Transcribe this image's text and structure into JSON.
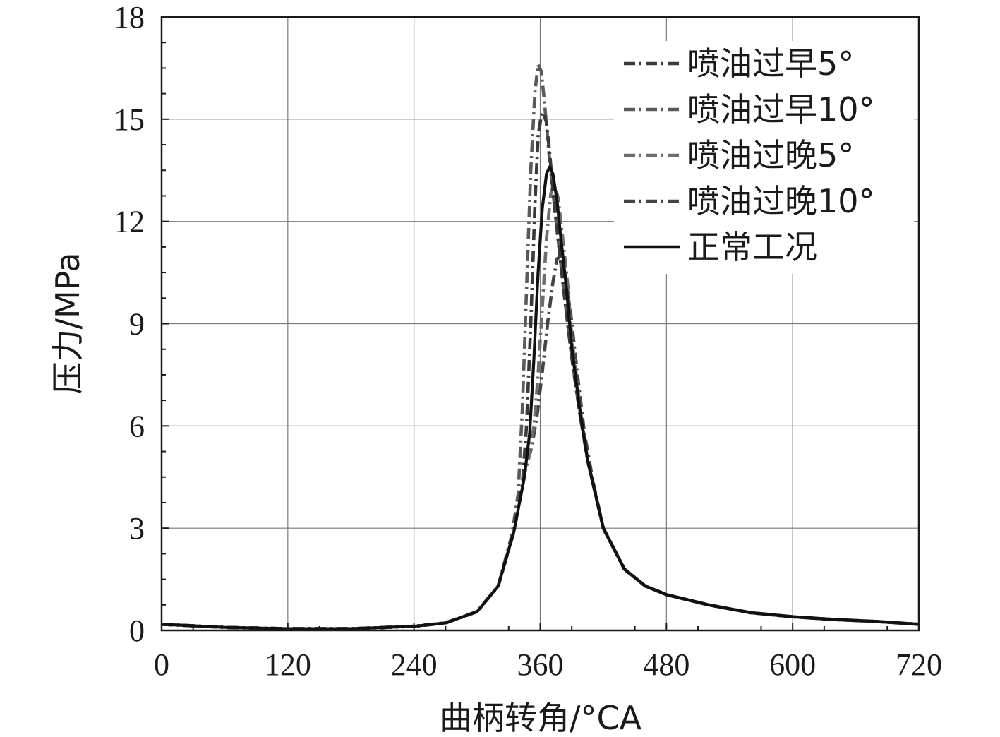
{
  "chart_data": {
    "type": "line",
    "xlabel": "曲柄转角/°CA",
    "ylabel": "压力/MPa",
    "xlim": [
      0,
      720
    ],
    "ylim": [
      0,
      18
    ],
    "xticks": [
      0,
      120,
      240,
      360,
      480,
      600,
      720
    ],
    "yticks": [
      0,
      3,
      6,
      9,
      12,
      15,
      18
    ],
    "grid": true,
    "legend_position": "top-right",
    "series": [
      {
        "name": "喷油过早5°",
        "color": "#3a3a3a",
        "dash": "dash-dot",
        "points": [
          [
            0,
            0.18
          ],
          [
            60,
            0.09
          ],
          [
            120,
            0.05
          ],
          [
            180,
            0.05
          ],
          [
            240,
            0.12
          ],
          [
            270,
            0.22
          ],
          [
            300,
            0.55
          ],
          [
            320,
            1.3
          ],
          [
            335,
            2.9
          ],
          [
            343,
            4.3
          ],
          [
            347,
            6.0
          ],
          [
            351,
            9.0
          ],
          [
            355,
            12.5
          ],
          [
            358,
            14.5
          ],
          [
            361,
            15.1
          ],
          [
            363,
            15.2
          ],
          [
            366,
            14.9
          ],
          [
            369,
            14.0
          ],
          [
            373,
            12.6
          ],
          [
            378,
            11.2
          ],
          [
            383,
            9.8
          ],
          [
            390,
            8.0
          ],
          [
            398,
            6.3
          ],
          [
            405,
            5.0
          ],
          [
            420,
            3.0
          ],
          [
            440,
            1.8
          ],
          [
            460,
            1.3
          ],
          [
            480,
            1.05
          ],
          [
            520,
            0.75
          ],
          [
            560,
            0.52
          ],
          [
            600,
            0.4
          ],
          [
            640,
            0.32
          ],
          [
            680,
            0.26
          ],
          [
            720,
            0.18
          ]
        ]
      },
      {
        "name": "喷油过早10°",
        "color": "#5a5a5a",
        "dash": "dash-dot",
        "points": [
          [
            0,
            0.18
          ],
          [
            60,
            0.09
          ],
          [
            120,
            0.05
          ],
          [
            180,
            0.05
          ],
          [
            240,
            0.12
          ],
          [
            270,
            0.22
          ],
          [
            300,
            0.55
          ],
          [
            320,
            1.3
          ],
          [
            333,
            2.8
          ],
          [
            339,
            4.0
          ],
          [
            343,
            6.5
          ],
          [
            347,
            10.0
          ],
          [
            351,
            13.5
          ],
          [
            355,
            15.8
          ],
          [
            358,
            16.6
          ],
          [
            361,
            16.4
          ],
          [
            364,
            15.5
          ],
          [
            368,
            14.1
          ],
          [
            373,
            12.6
          ],
          [
            378,
            11.2
          ],
          [
            383,
            9.8
          ],
          [
            390,
            8.0
          ],
          [
            398,
            6.3
          ],
          [
            405,
            5.0
          ],
          [
            420,
            3.0
          ],
          [
            440,
            1.8
          ],
          [
            460,
            1.3
          ],
          [
            480,
            1.05
          ],
          [
            520,
            0.75
          ],
          [
            560,
            0.52
          ],
          [
            600,
            0.4
          ],
          [
            640,
            0.32
          ],
          [
            680,
            0.26
          ],
          [
            720,
            0.18
          ]
        ]
      },
      {
        "name": "喷油过晚5°",
        "color": "#6e6e6e",
        "dash": "dash-dot",
        "points": [
          [
            0,
            0.18
          ],
          [
            60,
            0.09
          ],
          [
            120,
            0.05
          ],
          [
            180,
            0.05
          ],
          [
            240,
            0.12
          ],
          [
            270,
            0.22
          ],
          [
            300,
            0.55
          ],
          [
            320,
            1.3
          ],
          [
            335,
            2.9
          ],
          [
            345,
            4.6
          ],
          [
            350,
            5.2
          ],
          [
            354,
            6.0
          ],
          [
            358,
            7.5
          ],
          [
            362,
            9.5
          ],
          [
            366,
            11.5
          ],
          [
            370,
            12.8
          ],
          [
            373,
            13.1
          ],
          [
            377,
            12.7
          ],
          [
            381,
            11.6
          ],
          [
            386,
            10.2
          ],
          [
            390,
            8.6
          ],
          [
            398,
            6.5
          ],
          [
            405,
            5.0
          ],
          [
            420,
            3.0
          ],
          [
            440,
            1.8
          ],
          [
            460,
            1.3
          ],
          [
            480,
            1.05
          ],
          [
            520,
            0.75
          ],
          [
            560,
            0.52
          ],
          [
            600,
            0.4
          ],
          [
            640,
            0.32
          ],
          [
            680,
            0.26
          ],
          [
            720,
            0.18
          ]
        ]
      },
      {
        "name": "喷油过晚10°",
        "color": "#444444",
        "dash": "dash-dot",
        "points": [
          [
            0,
            0.18
          ],
          [
            60,
            0.09
          ],
          [
            120,
            0.05
          ],
          [
            180,
            0.05
          ],
          [
            240,
            0.12
          ],
          [
            270,
            0.22
          ],
          [
            300,
            0.55
          ],
          [
            320,
            1.3
          ],
          [
            335,
            2.9
          ],
          [
            345,
            4.6
          ],
          [
            352,
            5.4
          ],
          [
            357,
            6.3
          ],
          [
            362,
            7.6
          ],
          [
            367,
            9.0
          ],
          [
            372,
            10.2
          ],
          [
            376,
            10.9
          ],
          [
            380,
            11.0
          ],
          [
            384,
            10.4
          ],
          [
            389,
            9.3
          ],
          [
            395,
            7.6
          ],
          [
            402,
            5.8
          ],
          [
            410,
            4.4
          ],
          [
            420,
            3.0
          ],
          [
            440,
            1.8
          ],
          [
            460,
            1.3
          ],
          [
            480,
            1.05
          ],
          [
            520,
            0.75
          ],
          [
            560,
            0.52
          ],
          [
            600,
            0.4
          ],
          [
            640,
            0.32
          ],
          [
            680,
            0.26
          ],
          [
            720,
            0.18
          ]
        ]
      },
      {
        "name": "正常工况",
        "color": "#111111",
        "dash": "solid",
        "points": [
          [
            0,
            0.18
          ],
          [
            60,
            0.09
          ],
          [
            120,
            0.05
          ],
          [
            180,
            0.05
          ],
          [
            240,
            0.12
          ],
          [
            270,
            0.22
          ],
          [
            300,
            0.55
          ],
          [
            320,
            1.3
          ],
          [
            335,
            2.9
          ],
          [
            345,
            4.5
          ],
          [
            350,
            5.8
          ],
          [
            354,
            8.0
          ],
          [
            358,
            10.5
          ],
          [
            362,
            12.4
          ],
          [
            366,
            13.4
          ],
          [
            369,
            13.6
          ],
          [
            372,
            13.4
          ],
          [
            376,
            12.6
          ],
          [
            380,
            11.4
          ],
          [
            385,
            10.0
          ],
          [
            390,
            8.3
          ],
          [
            398,
            6.4
          ],
          [
            405,
            5.0
          ],
          [
            420,
            3.0
          ],
          [
            440,
            1.8
          ],
          [
            460,
            1.3
          ],
          [
            480,
            1.05
          ],
          [
            520,
            0.75
          ],
          [
            560,
            0.52
          ],
          [
            600,
            0.4
          ],
          [
            640,
            0.32
          ],
          [
            680,
            0.26
          ],
          [
            720,
            0.18
          ]
        ]
      }
    ]
  }
}
